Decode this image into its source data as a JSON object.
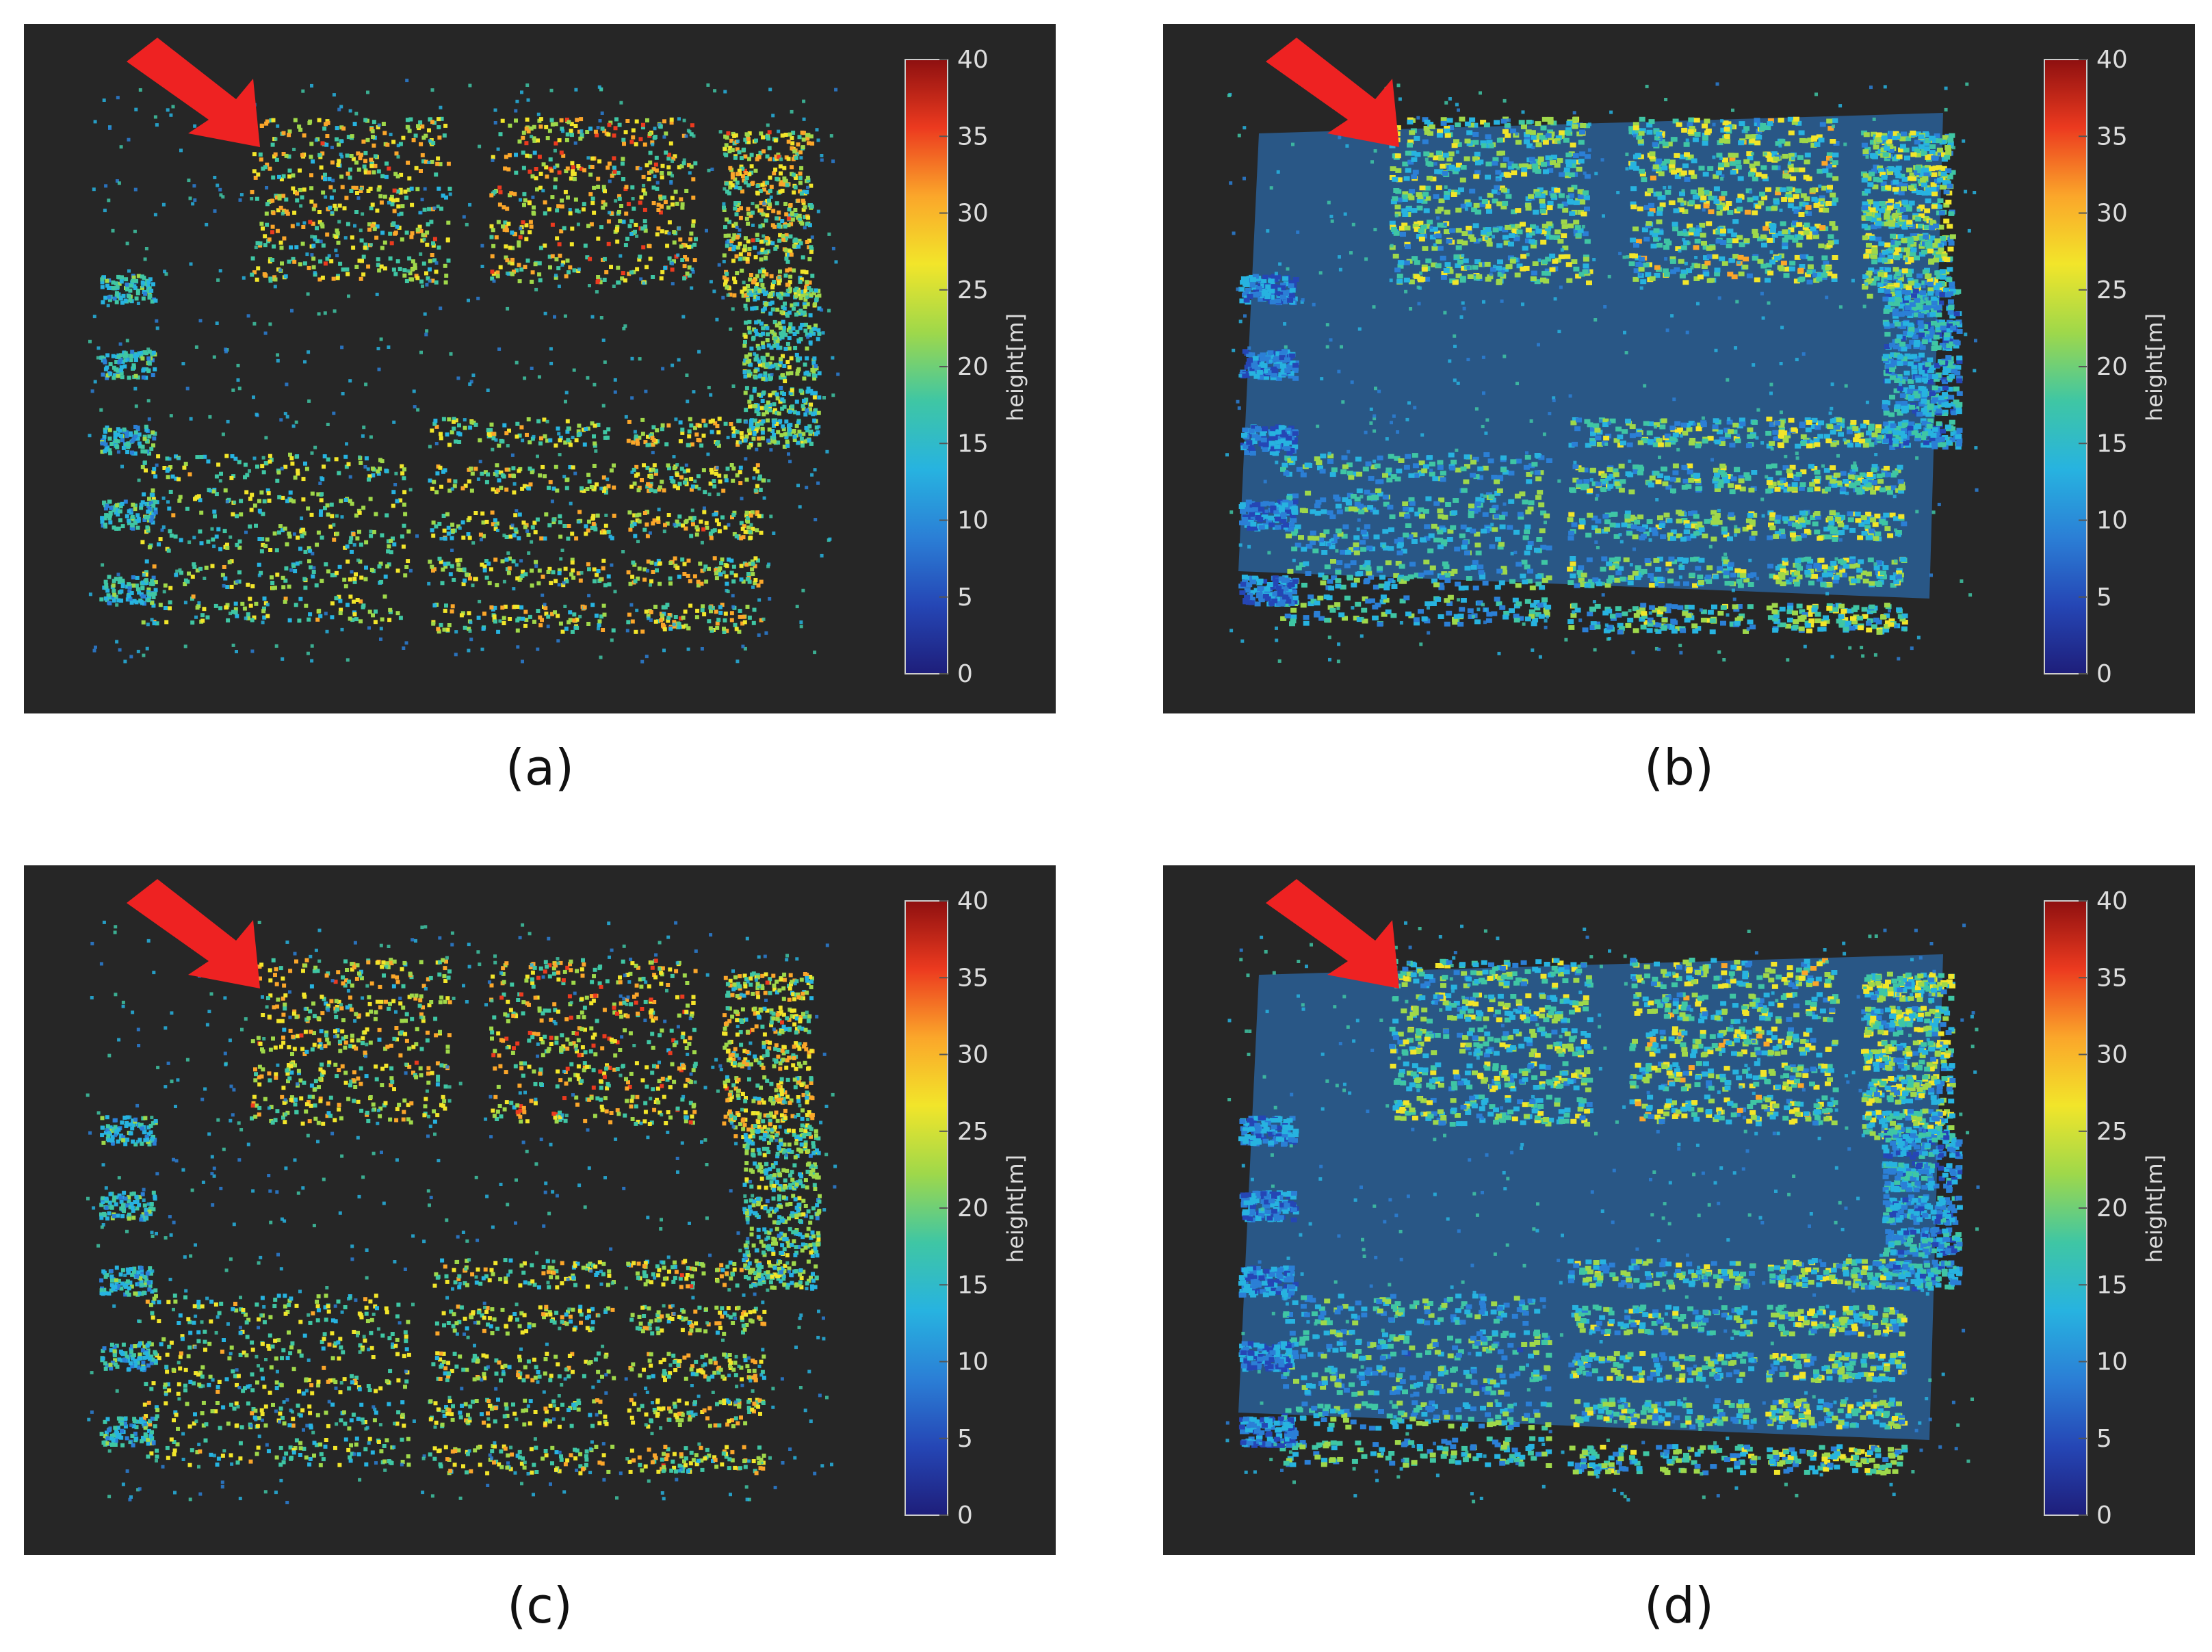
{
  "colors": {
    "background": "#262626",
    "arrow": "#ee2222",
    "colormap": [
      "#1e1e7a",
      "#2546b5",
      "#2b7fd6",
      "#27b3e0",
      "#3fc6a4",
      "#9fd84a",
      "#f2e52a",
      "#fba62a",
      "#ec3a1f",
      "#8e1010"
    ]
  },
  "panels": [
    {
      "caption": "(a)",
      "colorbar": {
        "label": "height[m]",
        "ticks": [
          "40",
          "35",
          "30",
          "25",
          "20",
          "15",
          "10",
          "5",
          "0"
        ],
        "min": 0,
        "max": 40
      }
    },
    {
      "caption": "(b)",
      "colorbar": {
        "label": "height[m]",
        "ticks": [
          "40",
          "35",
          "30",
          "25",
          "20",
          "15",
          "10",
          "5",
          "0"
        ],
        "min": 0,
        "max": 40
      }
    },
    {
      "caption": "(c)",
      "colorbar": {
        "label": "height[m]",
        "ticks": [
          "40",
          "35",
          "30",
          "25",
          "20",
          "15",
          "10",
          "5",
          "0"
        ],
        "min": 0,
        "max": 40
      }
    },
    {
      "caption": "(d)",
      "colorbar": {
        "label": "height[m]",
        "ticks": [
          "40",
          "35",
          "30",
          "25",
          "20",
          "15",
          "10",
          "5",
          "0"
        ],
        "min": 0,
        "max": 40
      }
    }
  ]
}
